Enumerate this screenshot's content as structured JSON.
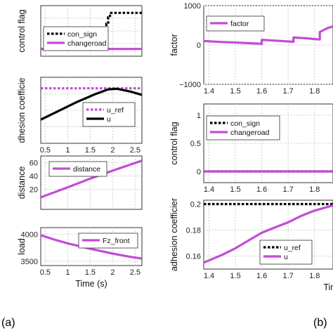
{
  "captions": {
    "a": "(a)",
    "b": "(b)"
  },
  "colors": {
    "magenta": "#c24cd6",
    "black": "#000000"
  },
  "chart_data": [
    {
      "type": "line",
      "ylabel": "control flag",
      "xlim": [
        0.4,
        2.65
      ],
      "ylim": [
        -0.2,
        1.2
      ],
      "xticks": [],
      "yticks": [],
      "legend": {
        "placement": "top-right",
        "entries": [
          "con_sign",
          "changeroad"
        ]
      },
      "series": [
        {
          "name": "con_sign",
          "style": "dotted",
          "color": "#000000",
          "x": [
            0.4,
            1.86,
            1.86,
            1.9,
            1.9,
            1.94,
            1.94,
            2.65
          ],
          "y": [
            0,
            0,
            0.7,
            0.7,
            0.88,
            0.88,
            1,
            1
          ]
        },
        {
          "name": "changeroad",
          "style": "solid",
          "color": "#c24cd6",
          "x": [
            0.4,
            2.65
          ],
          "y": [
            0,
            0
          ]
        }
      ]
    },
    {
      "type": "line",
      "ylabel": "dhesion coefficie",
      "xlim": [
        0.4,
        2.65
      ],
      "ylim": [
        0.1,
        0.22
      ],
      "xticks": [
        "0.5",
        "1",
        "1.5",
        "2",
        "2.5"
      ],
      "yticks": [],
      "legend": {
        "placement": "bottom-right",
        "entries": [
          "u_ref",
          "u"
        ]
      },
      "series": [
        {
          "name": "u_ref",
          "style": "dotted",
          "color": "#c24cd6",
          "x": [
            0.4,
            2.65
          ],
          "y": [
            0.2,
            0.2
          ]
        },
        {
          "name": "u",
          "style": "solid",
          "color": "#000000",
          "x": [
            0.4,
            0.8,
            1.2,
            1.6,
            1.9,
            2.1,
            2.4,
            2.65
          ],
          "y": [
            0.143,
            0.159,
            0.175,
            0.189,
            0.198,
            0.199,
            0.194,
            0.188
          ]
        }
      ]
    },
    {
      "type": "line",
      "ylabel": "distance",
      "xlim": [
        0.4,
        2.65
      ],
      "ylim": [
        -10,
        70
      ],
      "xticks": [],
      "yticks": [
        "20",
        "40",
        "60"
      ],
      "legend": {
        "placement": "top-right",
        "entries": [
          "distance"
        ]
      },
      "series": [
        {
          "name": "distance",
          "style": "solid",
          "color": "#c24cd6",
          "x": [
            0.4,
            1.0,
            1.5,
            2.0,
            2.65
          ],
          "y": [
            8,
            23,
            36,
            48,
            63
          ]
        }
      ]
    },
    {
      "type": "line",
      "ylabel": "load",
      "xlim": [
        0.4,
        2.65
      ],
      "ylim": [
        3420,
        4120
      ],
      "xticks": [
        "0.5",
        "1",
        "1.5",
        "2",
        "2.5"
      ],
      "yticks": [
        "3500",
        "4000"
      ],
      "xlabel": "Time (s)",
      "legend": {
        "placement": "top-right",
        "entries": [
          "Fz_front"
        ]
      },
      "series": [
        {
          "name": "Fz_front",
          "style": "solid",
          "color": "#c24cd6",
          "x": [
            0.4,
            0.7,
            1.0,
            1.5,
            2.0,
            2.4,
            2.65
          ],
          "y": [
            3980,
            3900,
            3830,
            3730,
            3640,
            3580,
            3550
          ]
        }
      ]
    },
    {
      "type": "line",
      "ylabel": "factor",
      "xlim": [
        1.38,
        1.87
      ],
      "ylim": [
        -1000,
        1000
      ],
      "xticks": [
        "1.4",
        "1.5",
        "1.6",
        "1.7",
        "1.8"
      ],
      "yticks": [
        "1000",
        "0",
        "−1000"
      ],
      "legend": {
        "placement": "top-left",
        "entries": [
          "factor"
        ]
      },
      "series": [
        {
          "name": "factor",
          "style": "solid",
          "color": "#c24cd6",
          "x": [
            1.38,
            1.45,
            1.52,
            1.58,
            1.6,
            1.6,
            1.65,
            1.7,
            1.72,
            1.72,
            1.77,
            1.8,
            1.82,
            1.82,
            1.85,
            1.87
          ],
          "y": [
            100,
            75,
            55,
            35,
            30,
            130,
            110,
            90,
            80,
            190,
            170,
            150,
            140,
            330,
            430,
            470
          ]
        }
      ]
    },
    {
      "type": "line",
      "ylabel": "control flag",
      "xlim": [
        1.38,
        1.87
      ],
      "ylim": [
        -0.2,
        1.2
      ],
      "xticks": [
        "1.4",
        "1.5",
        "1.6",
        "1.7",
        "1.8"
      ],
      "yticks": [
        "1",
        "0.5",
        "0"
      ],
      "legend": {
        "placement": "top-left",
        "entries": [
          "con_sign",
          "changeroad"
        ]
      },
      "series": [
        {
          "name": "con_sign",
          "style": "dotted",
          "color": "#000000",
          "x": [
            1.38,
            1.87
          ],
          "y": [
            0,
            0
          ]
        },
        {
          "name": "changeroad",
          "style": "solid",
          "color": "#c24cd6",
          "x": [
            1.38,
            1.87
          ],
          "y": [
            0,
            0
          ]
        }
      ]
    },
    {
      "type": "line",
      "ylabel": "adhesion coefficier",
      "xlim": [
        1.38,
        1.87
      ],
      "ylim": [
        0.15,
        0.203
      ],
      "xticks": [
        "1.4",
        "1.5",
        "1.6",
        "1.7",
        "1.8"
      ],
      "yticks": [
        "0.2",
        "0.18",
        "0.16"
      ],
      "xlabel": "Time",
      "legend": {
        "placement": "bottom-right",
        "entries": [
          "u_ref",
          "u"
        ]
      },
      "series": [
        {
          "name": "u_ref",
          "style": "dotted",
          "color": "#000000",
          "x": [
            1.38,
            1.87
          ],
          "y": [
            0.2,
            0.2
          ]
        },
        {
          "name": "u",
          "style": "solid",
          "color": "#c24cd6",
          "x": [
            1.38,
            1.45,
            1.5,
            1.55,
            1.6,
            1.65,
            1.7,
            1.75,
            1.8,
            1.87
          ],
          "y": [
            0.155,
            0.161,
            0.166,
            0.172,
            0.178,
            0.182,
            0.186,
            0.191,
            0.195,
            0.199
          ]
        }
      ]
    }
  ]
}
